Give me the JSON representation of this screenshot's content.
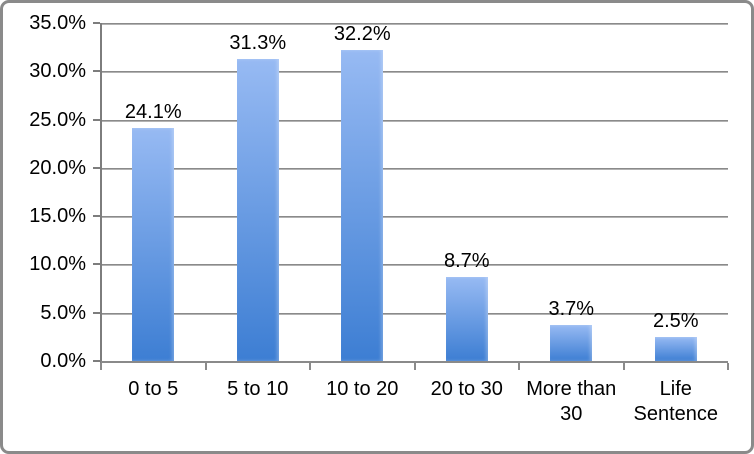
{
  "chart_data": {
    "type": "bar",
    "title": "",
    "xlabel": "",
    "ylabel": "",
    "categories": [
      "0 to 5",
      "5 to 10",
      "10 to 20",
      "20 to 30",
      "More than 30",
      "Life Sentence"
    ],
    "values": [
      24.1,
      31.3,
      32.2,
      8.7,
      3.7,
      2.5
    ],
    "value_labels": [
      "24.1%",
      "31.3%",
      "32.2%",
      "8.7%",
      "3.7%",
      "2.5%"
    ],
    "y_ticks": [
      "35.0%",
      "30.0%",
      "25.0%",
      "20.0%",
      "15.0%",
      "10.0%",
      "5.0%",
      "0.0%"
    ],
    "ylim": [
      0,
      35
    ],
    "y_tick_step": 5,
    "grid": true,
    "legend": false,
    "colors": {
      "bar_gradient_top": "#97baf3",
      "bar_gradient_bottom": "#3d7ed3",
      "gridline": "#7d7d7d",
      "axis": "#7d7d7d",
      "frame_border": "#8a8a8a",
      "background": "#ffffff",
      "label_text": "#000000"
    }
  }
}
